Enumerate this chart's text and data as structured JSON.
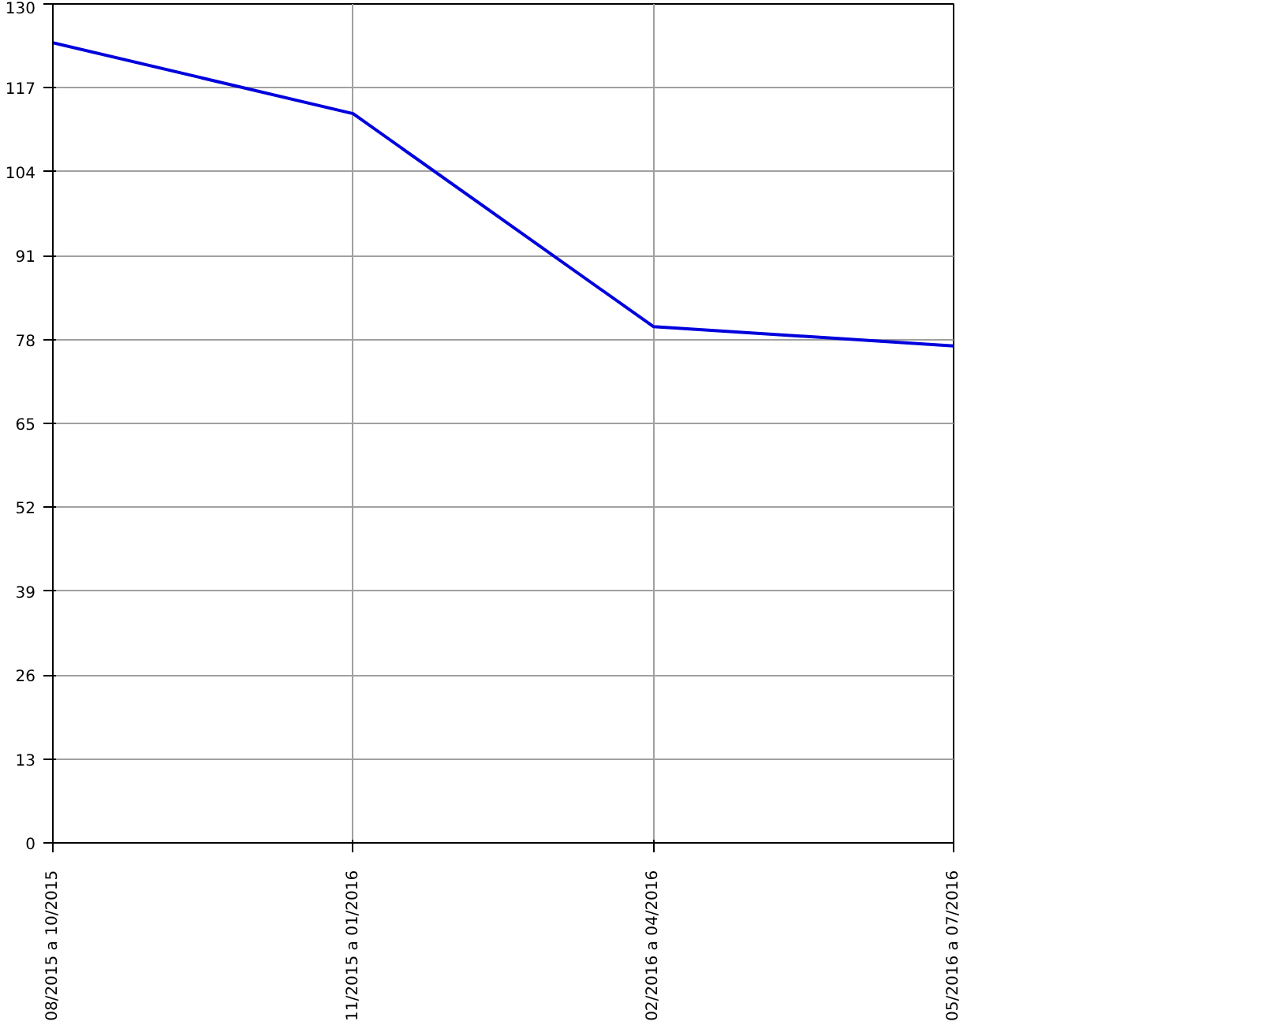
{
  "chart_data": {
    "type": "line",
    "categories": [
      "08/2015  a  10/2015",
      "11/2015  a  01/2016",
      "02/2016  a  04/2016",
      "05/2016  a  07/2016"
    ],
    "series": [
      {
        "color": "#0000dd",
        "values": [
          124,
          113,
          80,
          77
        ]
      }
    ],
    "ylim": [
      0,
      130
    ],
    "yticks": [
      0,
      13,
      26,
      39,
      52,
      65,
      78,
      91,
      104,
      117,
      130
    ],
    "grid": true,
    "marker": "none",
    "line_style": "solid"
  }
}
